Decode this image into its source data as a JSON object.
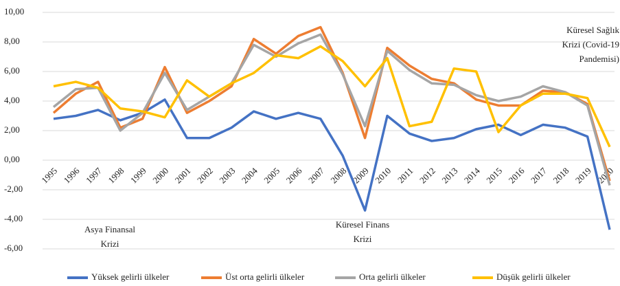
{
  "chart_data": {
    "type": "line",
    "categories": [
      "1995",
      "1996",
      "1997",
      "1998",
      "1999",
      "2000",
      "2001",
      "2002",
      "2003",
      "2004",
      "2005",
      "2006",
      "2007",
      "2008",
      "2009",
      "2010",
      "2011",
      "2012",
      "2013",
      "2014",
      "2015",
      "2016",
      "2017",
      "2018",
      "2019",
      "2020"
    ],
    "series": [
      {
        "name": "Yüksek gelirli ülkeler",
        "color": "#4472c4",
        "values": [
          2.8,
          3.0,
          3.4,
          2.7,
          3.2,
          4.1,
          1.5,
          1.5,
          2.2,
          3.3,
          2.8,
          3.2,
          2.8,
          0.3,
          -3.4,
          3.0,
          1.8,
          1.3,
          1.5,
          2.1,
          2.4,
          1.7,
          2.4,
          2.2,
          1.6,
          -4.7
        ]
      },
      {
        "name": "Üst orta gelirli ülkeler",
        "color": "#ed7d31",
        "values": [
          3.2,
          4.5,
          5.3,
          2.2,
          2.8,
          6.3,
          3.2,
          4.0,
          5.0,
          8.2,
          7.2,
          8.4,
          9.0,
          5.9,
          1.5,
          7.6,
          6.4,
          5.5,
          5.2,
          4.1,
          3.7,
          3.7,
          4.7,
          4.6,
          3.8,
          -1.4
        ]
      },
      {
        "name": "Orta gelirli ülkeler",
        "color": "#a5a5a5",
        "values": [
          3.6,
          4.8,
          4.9,
          2.0,
          3.2,
          5.9,
          3.4,
          4.3,
          5.2,
          7.8,
          7.0,
          7.9,
          8.5,
          5.8,
          2.3,
          7.4,
          6.1,
          5.2,
          5.1,
          4.4,
          4.0,
          4.3,
          5.0,
          4.6,
          3.7,
          -1.7
        ]
      },
      {
        "name": "Düşük gelirli ülkeler",
        "color": "#ffc000",
        "values": [
          5.0,
          5.3,
          4.9,
          3.5,
          3.3,
          2.9,
          5.4,
          4.3,
          5.2,
          5.9,
          7.1,
          6.9,
          7.7,
          6.7,
          5.0,
          6.9,
          2.3,
          2.6,
          6.2,
          6.0,
          1.9,
          3.7,
          4.5,
          4.5,
          4.2,
          0.9
        ]
      }
    ],
    "ylim": [
      -6,
      10
    ],
    "yticks": [
      {
        "value": -6,
        "label": "-6,00"
      },
      {
        "value": -4,
        "label": "-4,00"
      },
      {
        "value": -2,
        "label": "-2,00"
      },
      {
        "value": 0,
        "label": "0,00"
      },
      {
        "value": 2,
        "label": "2,00"
      },
      {
        "value": 4,
        "label": "4,00"
      },
      {
        "value": 6,
        "label": "6,00"
      },
      {
        "value": 8,
        "label": "8,00"
      },
      {
        "value": 10,
        "label": "10,00"
      }
    ],
    "grid": true,
    "legend": "bottom",
    "annotations": [
      {
        "lines": [
          "Asya Finansal",
          "Krizi"
        ]
      },
      {
        "lines": [
          "Küresel Finans",
          "Krizi"
        ]
      },
      {
        "lines": [
          "Küresel Sağlık",
          "Krizi (Covid-19",
          "Pandemisi)"
        ]
      }
    ]
  }
}
